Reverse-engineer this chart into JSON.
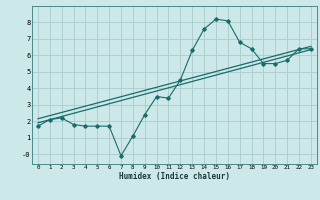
{
  "xlabel": "Humidex (Indice chaleur)",
  "bg_color": "#cce8e8",
  "grid_color": "#aacccc",
  "line_color": "#1a6b6b",
  "xlim": [
    -0.5,
    23.5
  ],
  "ylim": [
    -0.6,
    9.0
  ],
  "xticks": [
    0,
    1,
    2,
    3,
    4,
    5,
    6,
    7,
    8,
    9,
    10,
    11,
    12,
    13,
    14,
    15,
    16,
    17,
    18,
    19,
    20,
    21,
    22,
    23
  ],
  "yticks": [
    0,
    1,
    2,
    3,
    4,
    5,
    6,
    7,
    8
  ],
  "ytick_labels": [
    "-0",
    "1",
    "2",
    "3",
    "4",
    "5",
    "6",
    "7",
    "8"
  ],
  "curve1_x": [
    0,
    1,
    2,
    3,
    4,
    5,
    6,
    7,
    8,
    9,
    10,
    11,
    12,
    13,
    14,
    15,
    16,
    17,
    18,
    19,
    20,
    21,
    22,
    23
  ],
  "curve1_y": [
    1.7,
    2.1,
    2.2,
    1.8,
    1.7,
    1.7,
    1.7,
    -0.1,
    1.1,
    2.4,
    3.5,
    3.4,
    4.5,
    6.3,
    7.6,
    8.2,
    8.1,
    6.8,
    6.4,
    5.5,
    5.5,
    5.7,
    6.4,
    6.4
  ],
  "line2_x": [
    0,
    23
  ],
  "line2_y": [
    1.9,
    6.35
  ],
  "line3_x": [
    0,
    23
  ],
  "line3_y": [
    2.15,
    6.55
  ]
}
